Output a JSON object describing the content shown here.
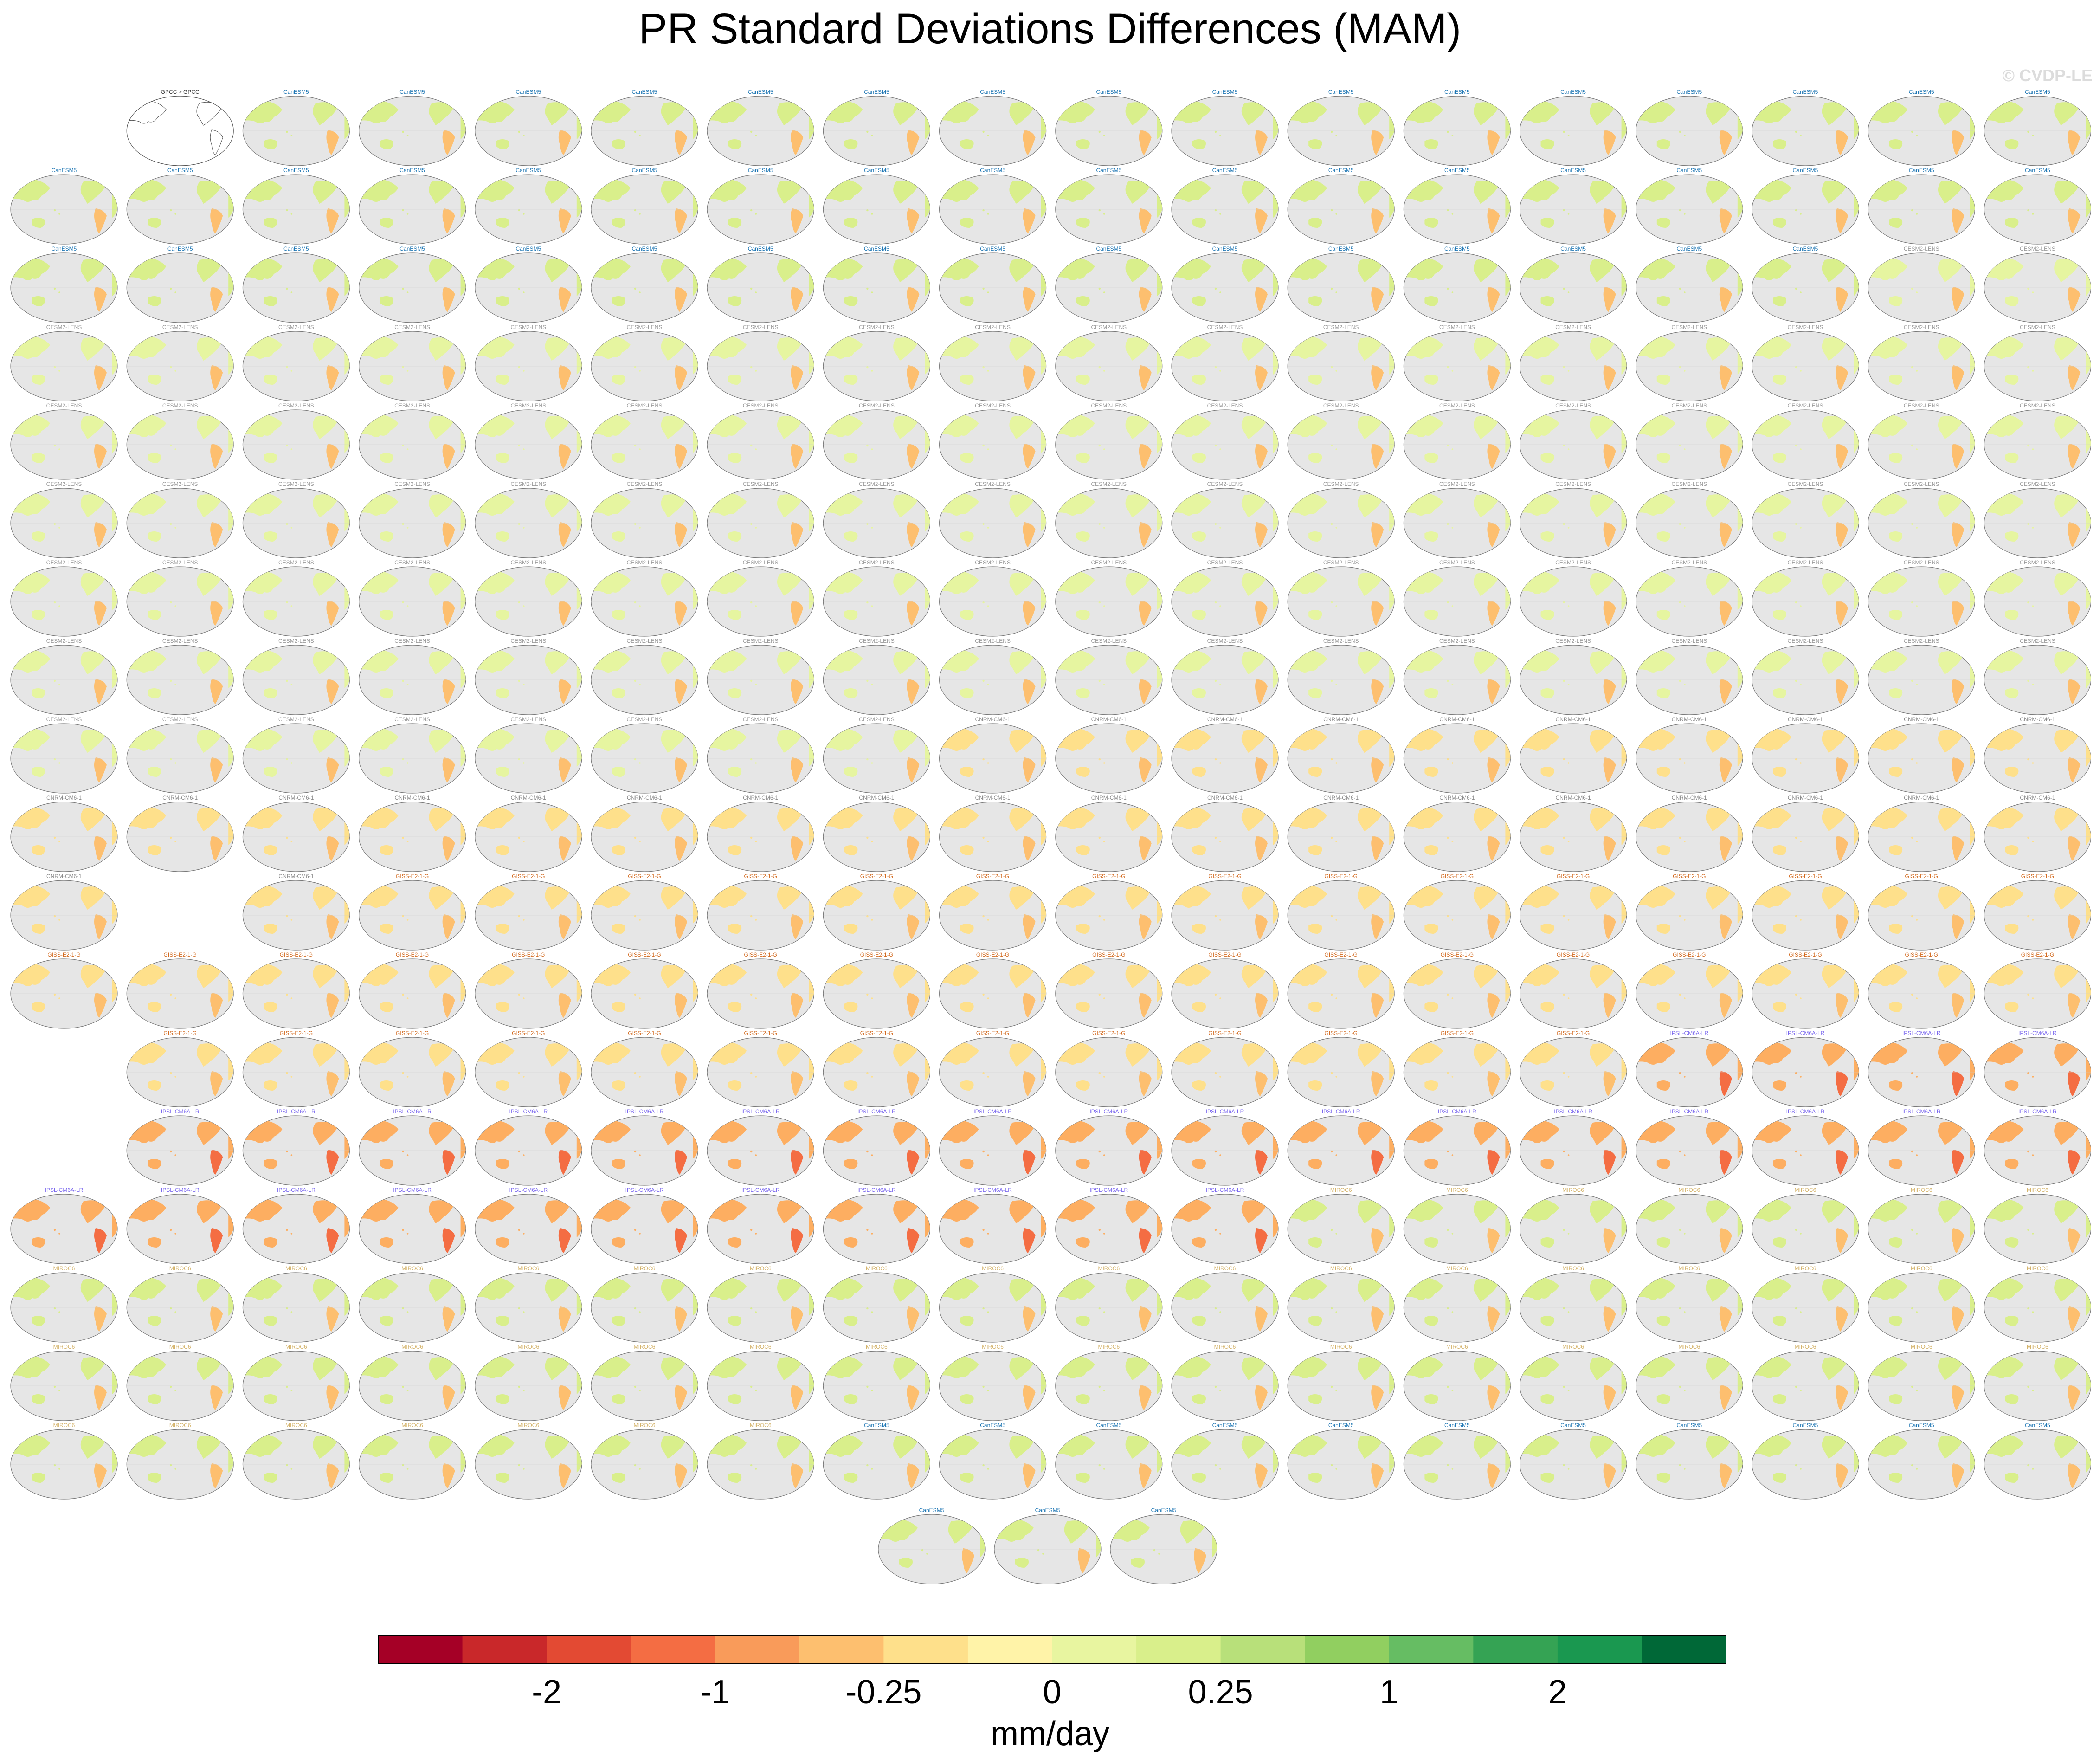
{
  "title": "PR Standard Deviations Differences (MAM)",
  "watermark": "© CVDP-LE",
  "first_panel_label": "GPCC > GPCC",
  "panel_groups": [
    {
      "name": "CanESM5",
      "count": 50,
      "label_color": "#1f77b4",
      "dominant_fill": "#d9ef8b"
    },
    {
      "name": "CESM2-LENS",
      "count": 100,
      "label_color": "#9a9a9a",
      "dominant_fill": "#e6f5a0"
    },
    {
      "name": "CNRM-CM6-1",
      "count": 30,
      "label_color": "#8a8a8a",
      "dominant_fill": "#fee08b"
    },
    {
      "name": "GISS-E2-1-G",
      "count": 46,
      "label_color": "#d2691e",
      "dominant_fill": "#fee08b"
    },
    {
      "name": "IPSL-CM6A-LR",
      "count": 32,
      "label_color": "#7b68ee",
      "dominant_fill": "#fdae61"
    },
    {
      "name": "MIROC6",
      "count": 50,
      "label_color": "#d4b36a",
      "dominant_fill": "#d9ef8b"
    }
  ],
  "chart_data": {
    "type": "heatmap",
    "title": "PR Standard Deviations Differences (MAM)",
    "projection": "Robinson, Pacific-centered",
    "panel_count": 309,
    "grid": false,
    "colorbar": {
      "label": "mm/day",
      "colors": [
        "#a50026",
        "#c9282a",
        "#e34a33",
        "#f46d43",
        "#f99b5a",
        "#fdbf6f",
        "#fee08b",
        "#fff3a8",
        "#e8f5a0",
        "#d9ef8b",
        "#b8e07a",
        "#91cf60",
        "#66bd63",
        "#35a354",
        "#1a9850",
        "#006837"
      ],
      "tick_labels": [
        "-2",
        "-1",
        "-0.25",
        "0",
        "0.25",
        "1",
        "2"
      ]
    }
  }
}
